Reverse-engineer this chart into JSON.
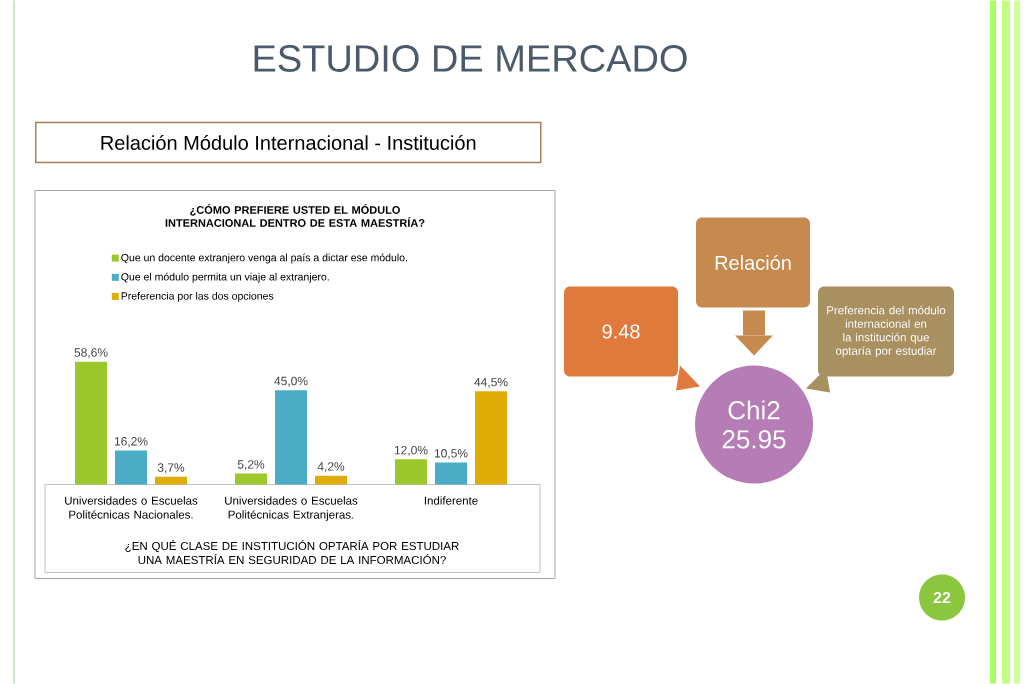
{
  "chart_data": [
    {
      "type": "bar",
      "title": "¿CÓMO PREFIERE USTED EL MÓDULO INTERNACIONAL DENTRO DE ESTA MAESTRÍA?",
      "xlabel": "¿EN QUÉ CLASE DE INSTITUCIÓN OPTARÍA POR ESTUDIAR UNA MAESTRÍA EN SEGURIDAD DE LA INFORMACIÓN?",
      "categories": [
        "Universidades o Escuelas Politécnicas Nacionales.",
        "Universidades o Escuelas Politécnicas Extranjeras.",
        "Indiferente"
      ],
      "legend": "top",
      "tick_labels": "x",
      "series": [
        {
          "name": "Que un docente extranjero venga al país a dictar ese módulo.",
          "color": "#9bc82a",
          "values": [
            58.6,
            5.2,
            12.0
          ],
          "value_labels": [
            "58,6%",
            "5,2%",
            "12,0%"
          ]
        },
        {
          "name": "Que el módulo permita un viaje al extranjero.",
          "color": "#4bacc6",
          "values": [
            16.2,
            45.0,
            10.5
          ],
          "value_labels": [
            "16,2%",
            "45,0%",
            "10,5%"
          ]
        },
        {
          "name": "Preferencia por las dos opciones",
          "color": "#e0ac08",
          "values": [
            3.7,
            4.2,
            44.5
          ],
          "value_labels": [
            "3,7%",
            "4,2%",
            "44,5%"
          ]
        }
      ]
    },
    {
      "type": "other",
      "title": "ESTUDIO DE MERCADO",
      "subtitle": "Relación Módulo Internacional - Institución",
      "annotations": [
        "Relación",
        "9.48",
        "Preferencia del módulo internacional en la institución que optaría por estudiar",
        "Chi2 25.95",
        "22"
      ]
    }
  ]
}
